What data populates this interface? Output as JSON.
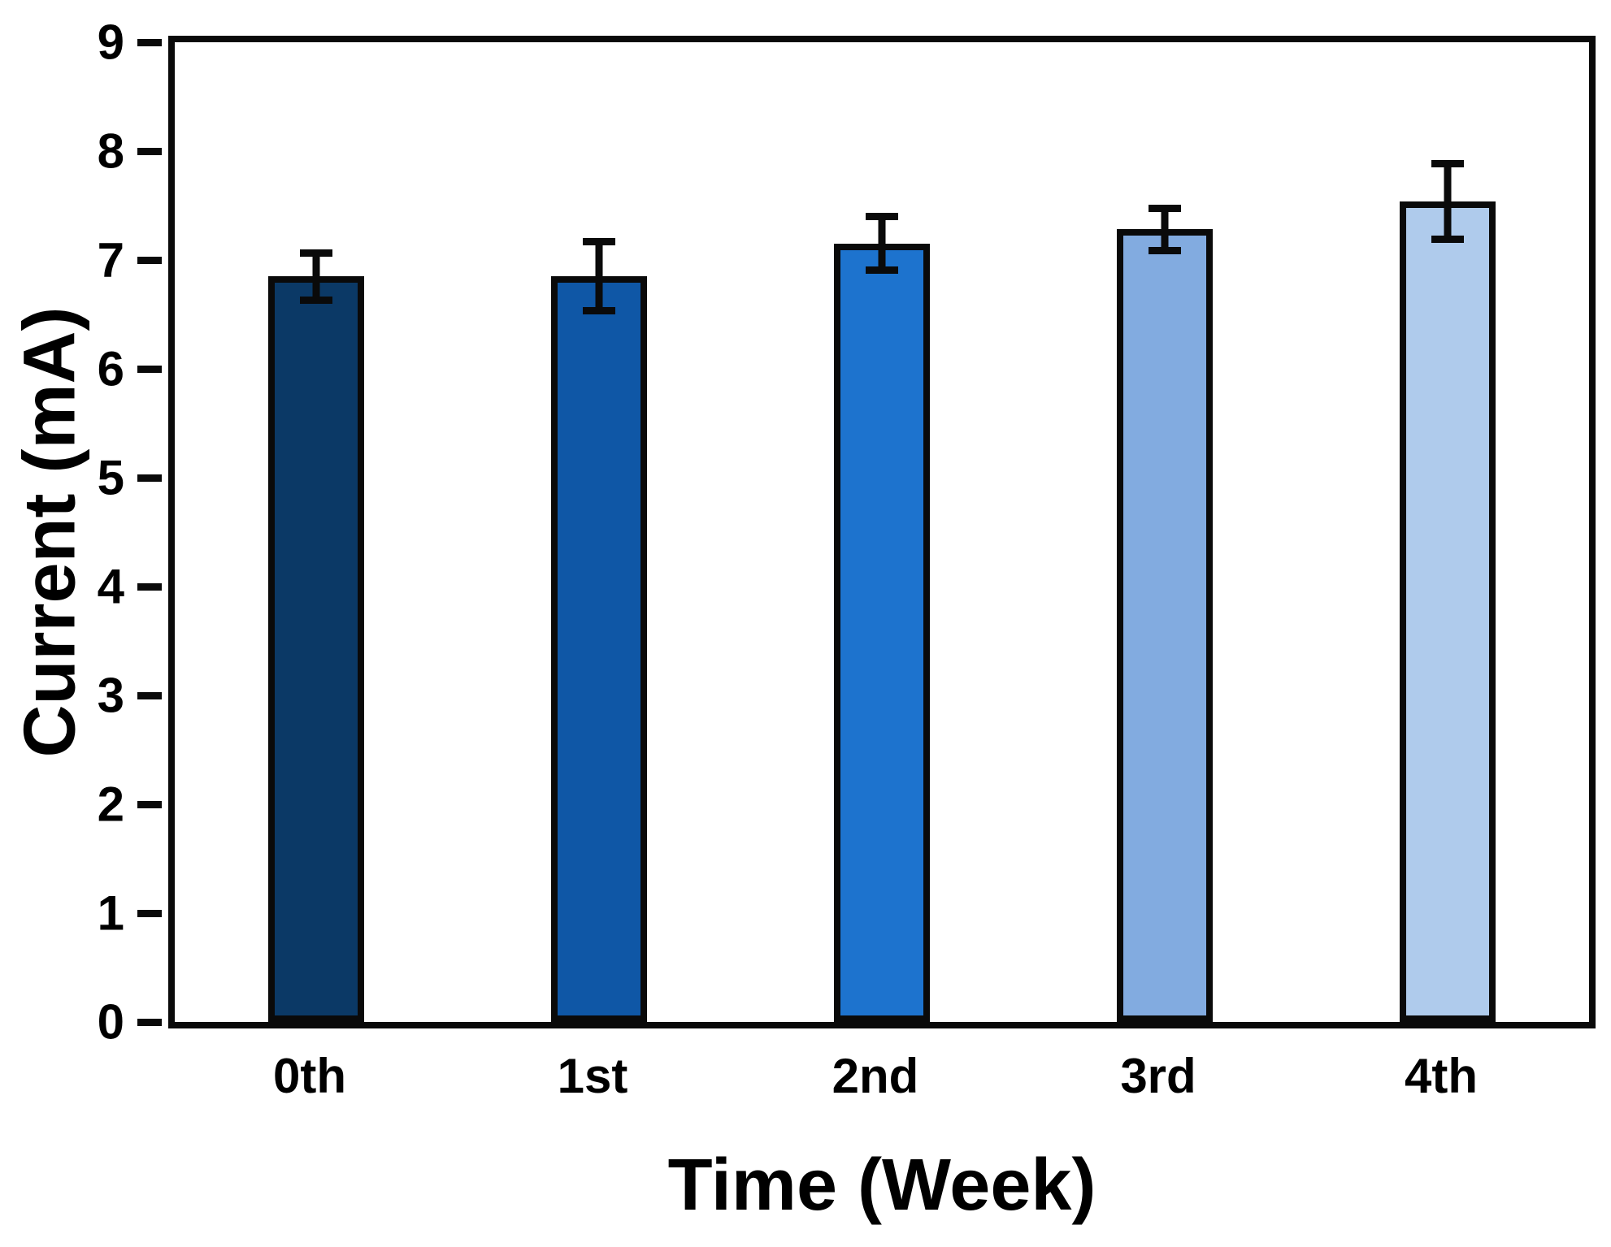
{
  "chart_data": {
    "type": "bar",
    "title": "",
    "xlabel": "Time (Week)",
    "ylabel": "Current (mA)",
    "categories": [
      "0th",
      "1st",
      "2nd",
      "3rd",
      "4th"
    ],
    "values": [
      6.85,
      6.85,
      7.15,
      7.28,
      7.54
    ],
    "errors": [
      0.25,
      0.35,
      0.28,
      0.23,
      0.38
    ],
    "bar_colors": [
      "#0B3966",
      "#0F57A6",
      "#1D73CE",
      "#82ABE0",
      "#AFCBEC"
    ],
    "bar_border_color": "#0a0a0a",
    "error_bar_color": "#0a0a0a",
    "axis_color": "#0a0a0a",
    "ylim": [
      0,
      9
    ],
    "yticks": [
      0,
      1,
      2,
      3,
      4,
      5,
      6,
      7,
      8,
      9
    ],
    "grid": false,
    "legend_position": "none"
  }
}
